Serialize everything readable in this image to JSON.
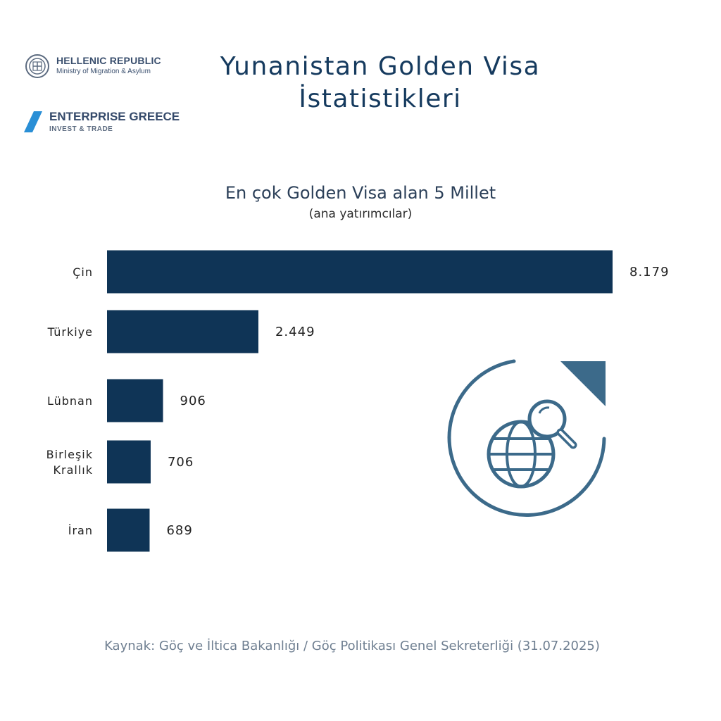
{
  "logos": {
    "hellenic": {
      "line1": "HELLENIC REPUBLIC",
      "line2": "Ministry of Migration & Asylum"
    },
    "enterprise": {
      "line1": "ENTERPRISE GREECE",
      "line2": "INVEST & TRADE"
    }
  },
  "header": {
    "title_line1": "Yunanistan Golden Visa",
    "title_line2": "İstatistikleri"
  },
  "chart_data": {
    "type": "bar",
    "orientation": "horizontal",
    "title": "En çok Golden Visa alan 5 Millet",
    "subtitle": "(ana yatırımcılar)",
    "categories": [
      [
        "Çin"
      ],
      [
        "Türkiye"
      ],
      [
        "Lübnan"
      ],
      [
        "Birleşik",
        "Krallık"
      ],
      [
        "İran"
      ]
    ],
    "values": [
      8179,
      2449,
      906,
      706,
      689
    ],
    "value_labels": [
      "8.179",
      "2.449",
      "906",
      "706",
      "689"
    ],
    "bar_color": "#0f3456",
    "grid": false,
    "legend": "none"
  },
  "decoration": {
    "icon": "globe-search-icon",
    "color": "#3c6a8a"
  },
  "footer": {
    "source": "Kaynak: Göç ve İltica Bakanlığı / Göç Politikası Genel Sekreterliği (31.07.2025)"
  }
}
